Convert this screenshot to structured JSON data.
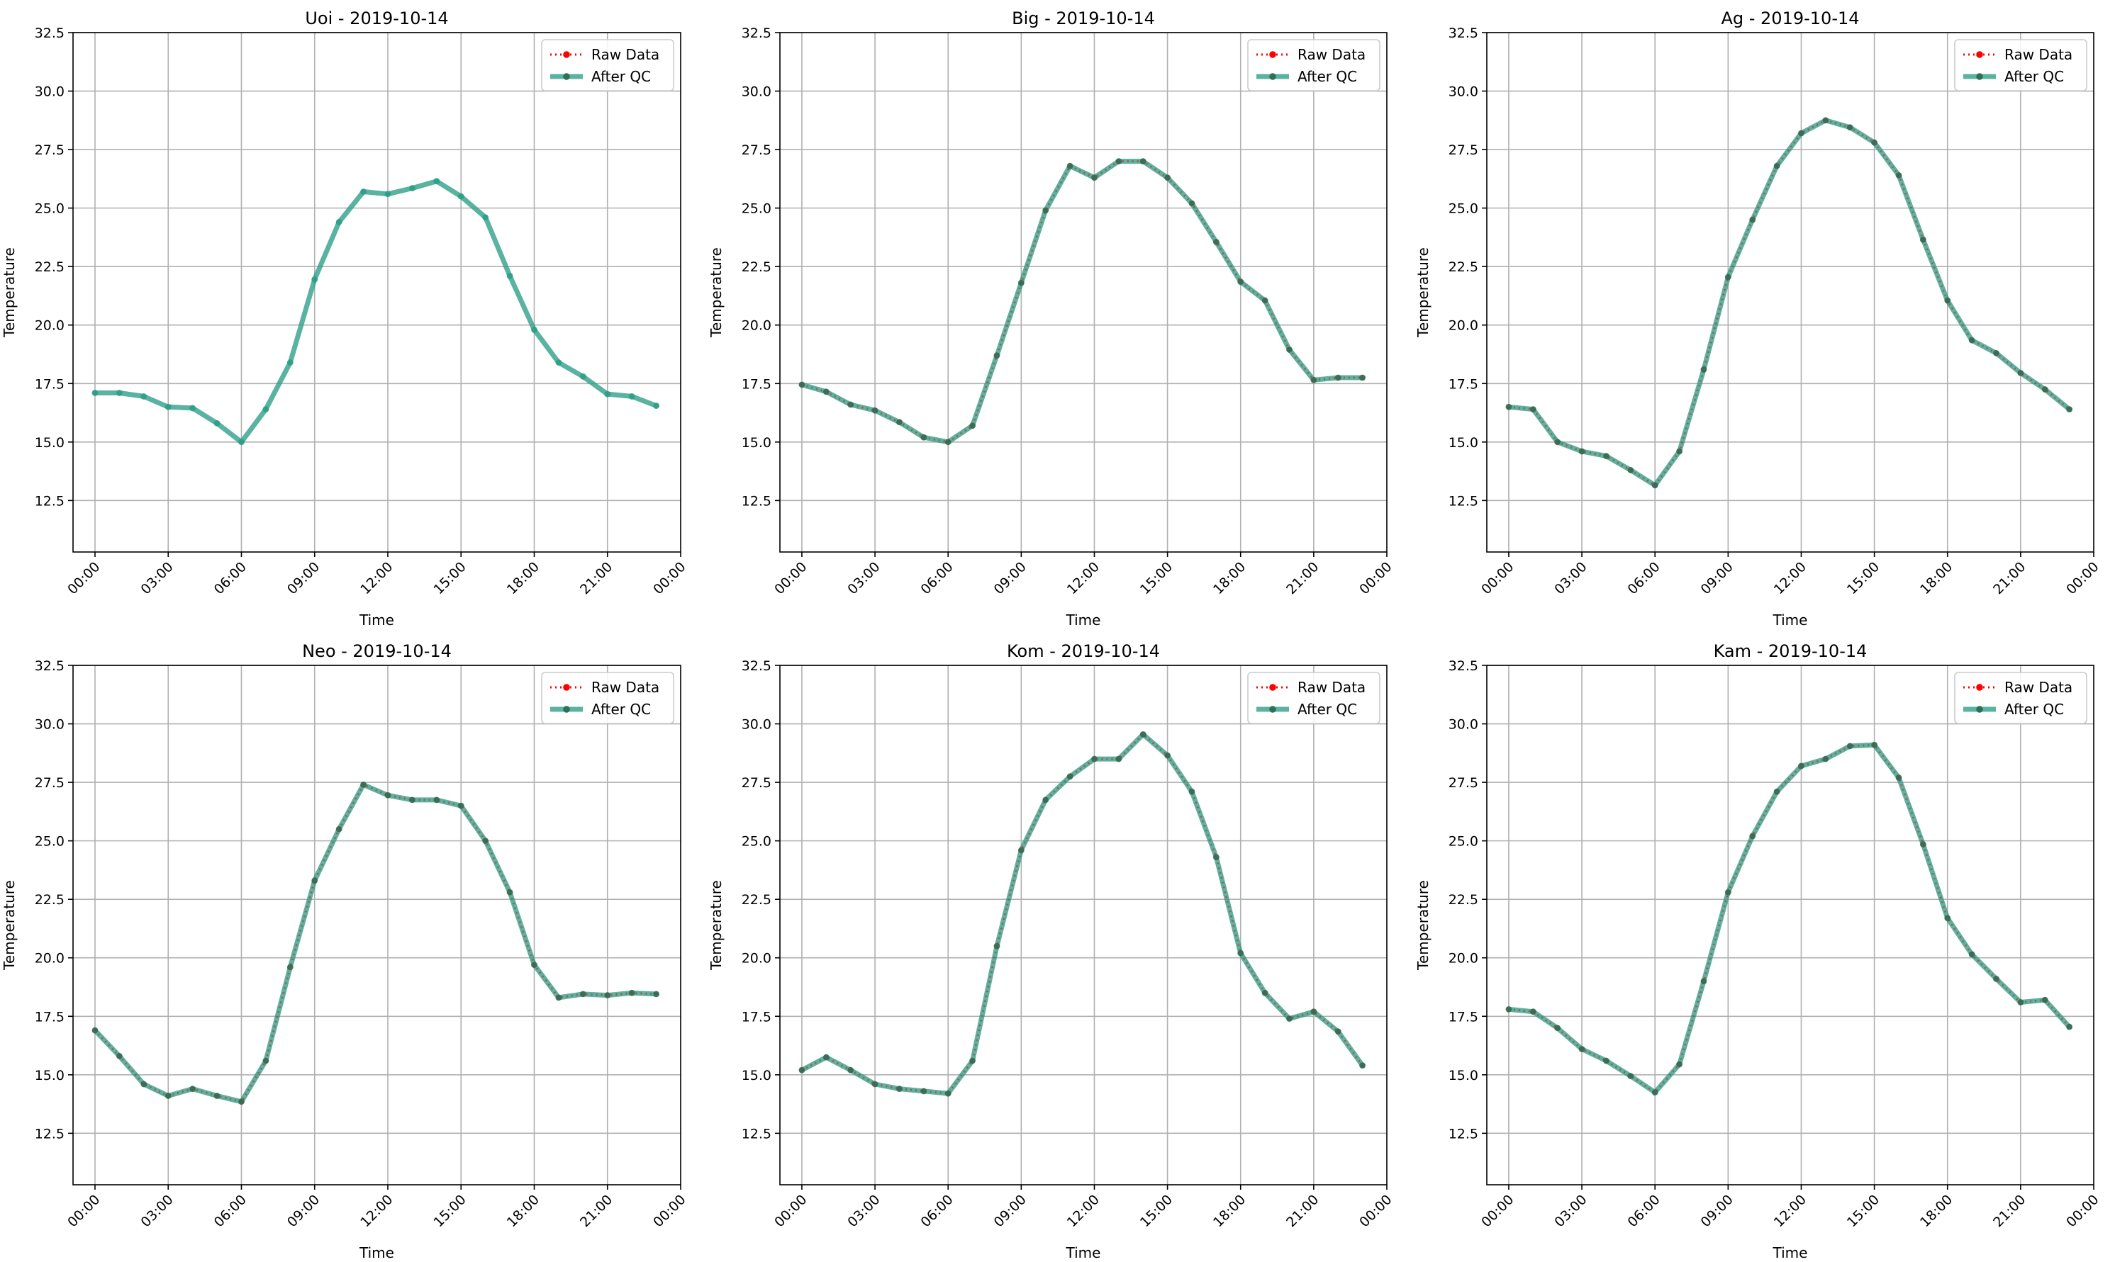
{
  "chart_data": [
    {
      "type": "line",
      "title": "Uoi - 2019-10-14",
      "xlabel": "Time",
      "ylabel": "Temperature",
      "ylim": [
        10.3,
        32.5
      ],
      "xlim": [
        -0.9,
        24.0
      ],
      "x_unit": "hour of day",
      "x_tick_labels": [
        "00:00",
        "03:00",
        "06:00",
        "09:00",
        "12:00",
        "15:00",
        "18:00",
        "21:00",
        "00:00"
      ],
      "y_tick_labels": [
        "12.5",
        "15.0",
        "17.5",
        "20.0",
        "22.5",
        "25.0",
        "27.5",
        "30.0",
        "32.5"
      ],
      "grid": true,
      "legend_position": "top-right",
      "x": [
        0,
        1,
        2,
        3,
        4,
        5,
        6,
        7,
        8,
        9,
        10,
        11,
        12,
        13,
        14,
        15,
        16,
        17,
        18,
        19,
        20,
        21,
        22,
        23
      ],
      "series": [
        {
          "name": "Raw Data",
          "color": "#ff0000",
          "style": "dotted",
          "values": [
            17.1,
            17.1,
            16.95,
            16.5,
            16.45,
            15.8,
            15.0,
            16.4,
            18.4,
            21.95,
            24.4,
            25.7,
            25.6,
            25.85,
            26.15,
            25.5,
            24.6,
            22.1,
            19.8,
            18.4,
            17.8,
            17.05,
            16.95,
            16.55
          ]
        },
        {
          "name": "After QC",
          "color": "#2a9d85",
          "style": "solid",
          "values": [
            17.1,
            17.1,
            16.95,
            16.5,
            16.45,
            15.8,
            15.0,
            16.4,
            18.4,
            21.95,
            24.4,
            25.7,
            25.6,
            25.85,
            26.15,
            25.5,
            24.6,
            22.1,
            19.8,
            18.4,
            17.8,
            17.05,
            16.95,
            16.55
          ]
        }
      ]
    },
    {
      "type": "line",
      "title": "Big - 2019-10-14",
      "xlabel": "Time",
      "ylabel": "Temperature",
      "ylim": [
        10.3,
        32.5
      ],
      "xlim": [
        -0.9,
        24.0
      ],
      "x_unit": "hour of day",
      "x_tick_labels": [
        "00:00",
        "03:00",
        "06:00",
        "09:00",
        "12:00",
        "15:00",
        "18:00",
        "21:00",
        "00:00"
      ],
      "y_tick_labels": [
        "12.5",
        "15.0",
        "17.5",
        "20.0",
        "22.5",
        "25.0",
        "27.5",
        "30.0",
        "32.5"
      ],
      "grid": true,
      "legend_position": "top-right",
      "x": [
        0,
        1,
        2,
        3,
        4,
        5,
        6,
        7,
        8,
        9,
        10,
        11,
        12,
        13,
        14,
        15,
        16,
        17,
        18,
        19,
        20,
        21,
        22,
        23
      ],
      "series": [
        {
          "name": "Raw Data",
          "color": "#ff0000",
          "style": "dotted",
          "values": [
            17.45,
            17.15,
            16.6,
            16.35,
            15.85,
            15.2,
            15.0,
            15.7,
            18.7,
            21.8,
            24.9,
            26.8,
            26.3,
            27.0,
            27.0,
            26.3,
            25.2,
            23.55,
            21.85,
            21.05,
            18.95,
            17.65,
            17.75,
            17.75
          ]
        },
        {
          "name": "After QC",
          "color": "#2a9d85",
          "style": "solid",
          "values": [
            17.45,
            17.15,
            16.6,
            16.35,
            15.85,
            15.2,
            15.0,
            15.7,
            18.7,
            21.8,
            24.9,
            26.8,
            26.3,
            27.0,
            27.0,
            26.3,
            25.2,
            23.55,
            21.85,
            21.05,
            18.95,
            17.65,
            17.75,
            17.75
          ]
        }
      ]
    },
    {
      "type": "line",
      "title": "Ag - 2019-10-14",
      "xlabel": "Time",
      "ylabel": "Temperature",
      "ylim": [
        10.3,
        32.5
      ],
      "xlim": [
        -0.9,
        24.0
      ],
      "x_unit": "hour of day",
      "x_tick_labels": [
        "00:00",
        "03:00",
        "06:00",
        "09:00",
        "12:00",
        "15:00",
        "18:00",
        "21:00",
        "00:00"
      ],
      "y_tick_labels": [
        "12.5",
        "15.0",
        "17.5",
        "20.0",
        "22.5",
        "25.0",
        "27.5",
        "30.0",
        "32.5"
      ],
      "grid": true,
      "legend_position": "top-right",
      "x": [
        0,
        1,
        2,
        3,
        4,
        5,
        6,
        7,
        8,
        9,
        10,
        11,
        12,
        13,
        14,
        15,
        16,
        17,
        18,
        19,
        20,
        21,
        22,
        23
      ],
      "series": [
        {
          "name": "Raw Data",
          "color": "#ff0000",
          "style": "dotted",
          "values": [
            16.5,
            16.4,
            15.0,
            14.6,
            14.4,
            13.8,
            13.15,
            14.6,
            18.1,
            22.05,
            24.5,
            26.8,
            28.2,
            28.75,
            28.45,
            27.8,
            26.4,
            23.65,
            21.05,
            19.35,
            18.8,
            17.95,
            17.25,
            16.4
          ]
        },
        {
          "name": "After QC",
          "color": "#2a9d85",
          "style": "solid",
          "values": [
            16.5,
            16.4,
            15.0,
            14.6,
            14.4,
            13.8,
            13.15,
            14.6,
            18.1,
            22.05,
            24.5,
            26.8,
            28.2,
            28.75,
            28.45,
            27.8,
            26.4,
            23.65,
            21.05,
            19.35,
            18.8,
            17.95,
            17.25,
            16.4
          ]
        }
      ]
    },
    {
      "type": "line",
      "title": "Neo - 2019-10-14",
      "xlabel": "Time",
      "ylabel": "Temperature",
      "ylim": [
        10.3,
        32.5
      ],
      "xlim": [
        -0.9,
        24.0
      ],
      "x_unit": "hour of day",
      "x_tick_labels": [
        "00:00",
        "03:00",
        "06:00",
        "09:00",
        "12:00",
        "15:00",
        "18:00",
        "21:00",
        "00:00"
      ],
      "y_tick_labels": [
        "12.5",
        "15.0",
        "17.5",
        "20.0",
        "22.5",
        "25.0",
        "27.5",
        "30.0",
        "32.5"
      ],
      "grid": true,
      "legend_position": "top-right",
      "x": [
        0,
        1,
        2,
        3,
        4,
        5,
        6,
        7,
        8,
        9,
        10,
        11,
        12,
        13,
        14,
        15,
        16,
        17,
        18,
        19,
        20,
        21,
        22,
        23
      ],
      "series": [
        {
          "name": "Raw Data",
          "color": "#ff0000",
          "style": "dotted",
          "values": [
            16.9,
            15.8,
            14.6,
            14.1,
            14.4,
            14.1,
            13.85,
            15.6,
            19.6,
            23.3,
            25.5,
            27.4,
            26.95,
            26.75,
            26.75,
            26.5,
            25.0,
            22.8,
            19.7,
            18.3,
            18.45,
            18.4,
            18.5,
            18.45
          ]
        },
        {
          "name": "After QC",
          "color": "#2a9d85",
          "style": "solid",
          "values": [
            16.9,
            15.8,
            14.6,
            14.1,
            14.4,
            14.1,
            13.85,
            15.6,
            19.6,
            23.3,
            25.5,
            27.4,
            26.95,
            26.75,
            26.75,
            26.5,
            25.0,
            22.8,
            19.7,
            18.3,
            18.45,
            18.4,
            18.5,
            18.45
          ]
        }
      ]
    },
    {
      "type": "line",
      "title": "Kom - 2019-10-14",
      "xlabel": "Time",
      "ylabel": "Temperature",
      "ylim": [
        10.3,
        32.5
      ],
      "xlim": [
        -0.9,
        24.0
      ],
      "x_unit": "hour of day",
      "x_tick_labels": [
        "00:00",
        "03:00",
        "06:00",
        "09:00",
        "12:00",
        "15:00",
        "18:00",
        "21:00",
        "00:00"
      ],
      "y_tick_labels": [
        "12.5",
        "15.0",
        "17.5",
        "20.0",
        "22.5",
        "25.0",
        "27.5",
        "30.0",
        "32.5"
      ],
      "grid": true,
      "legend_position": "top-right",
      "x": [
        0,
        1,
        2,
        3,
        4,
        5,
        6,
        7,
        8,
        9,
        10,
        11,
        12,
        13,
        14,
        15,
        16,
        17,
        18,
        19,
        20,
        21,
        22,
        23
      ],
      "series": [
        {
          "name": "Raw Data",
          "color": "#ff0000",
          "style": "dotted",
          "values": [
            15.2,
            15.75,
            15.2,
            14.6,
            14.4,
            14.3,
            14.2,
            15.6,
            20.5,
            24.6,
            26.75,
            27.75,
            28.5,
            28.5,
            29.55,
            28.65,
            27.1,
            24.3,
            20.2,
            18.5,
            17.4,
            17.7,
            16.85,
            15.4
          ]
        },
        {
          "name": "After QC",
          "color": "#2a9d85",
          "style": "solid",
          "values": [
            15.2,
            15.75,
            15.2,
            14.6,
            14.4,
            14.3,
            14.2,
            15.6,
            20.5,
            24.6,
            26.75,
            27.75,
            28.5,
            28.5,
            29.55,
            28.65,
            27.1,
            24.3,
            20.2,
            18.5,
            17.4,
            17.7,
            16.85,
            15.4
          ]
        }
      ]
    },
    {
      "type": "line",
      "title": "Kam - 2019-10-14",
      "xlabel": "Time",
      "ylabel": "Temperature",
      "ylim": [
        10.3,
        32.5
      ],
      "xlim": [
        -0.9,
        24.0
      ],
      "x_unit": "hour of day",
      "x_tick_labels": [
        "00:00",
        "03:00",
        "06:00",
        "09:00",
        "12:00",
        "15:00",
        "18:00",
        "21:00",
        "00:00"
      ],
      "y_tick_labels": [
        "12.5",
        "15.0",
        "17.5",
        "20.0",
        "22.5",
        "25.0",
        "27.5",
        "30.0",
        "32.5"
      ],
      "grid": true,
      "legend_position": "top-right",
      "x": [
        0,
        1,
        2,
        3,
        4,
        5,
        6,
        7,
        8,
        9,
        10,
        11,
        12,
        13,
        14,
        15,
        16,
        17,
        18,
        19,
        20,
        21,
        22,
        23
      ],
      "series": [
        {
          "name": "Raw Data",
          "color": "#ff0000",
          "style": "dotted",
          "values": [
            17.8,
            17.7,
            17.0,
            16.1,
            15.6,
            14.95,
            14.25,
            15.45,
            19.0,
            22.8,
            25.2,
            27.1,
            28.2,
            28.5,
            29.05,
            29.1,
            27.7,
            24.85,
            21.7,
            20.15,
            19.1,
            18.1,
            18.2,
            17.05
          ]
        },
        {
          "name": "After QC",
          "color": "#2a9d85",
          "style": "solid",
          "values": [
            17.8,
            17.7,
            17.0,
            16.1,
            15.6,
            14.95,
            14.25,
            15.45,
            19.0,
            22.8,
            25.2,
            27.1,
            28.2,
            28.5,
            29.05,
            29.1,
            27.7,
            24.85,
            21.7,
            20.15,
            19.1,
            18.1,
            18.2,
            17.05
          ]
        }
      ]
    }
  ]
}
